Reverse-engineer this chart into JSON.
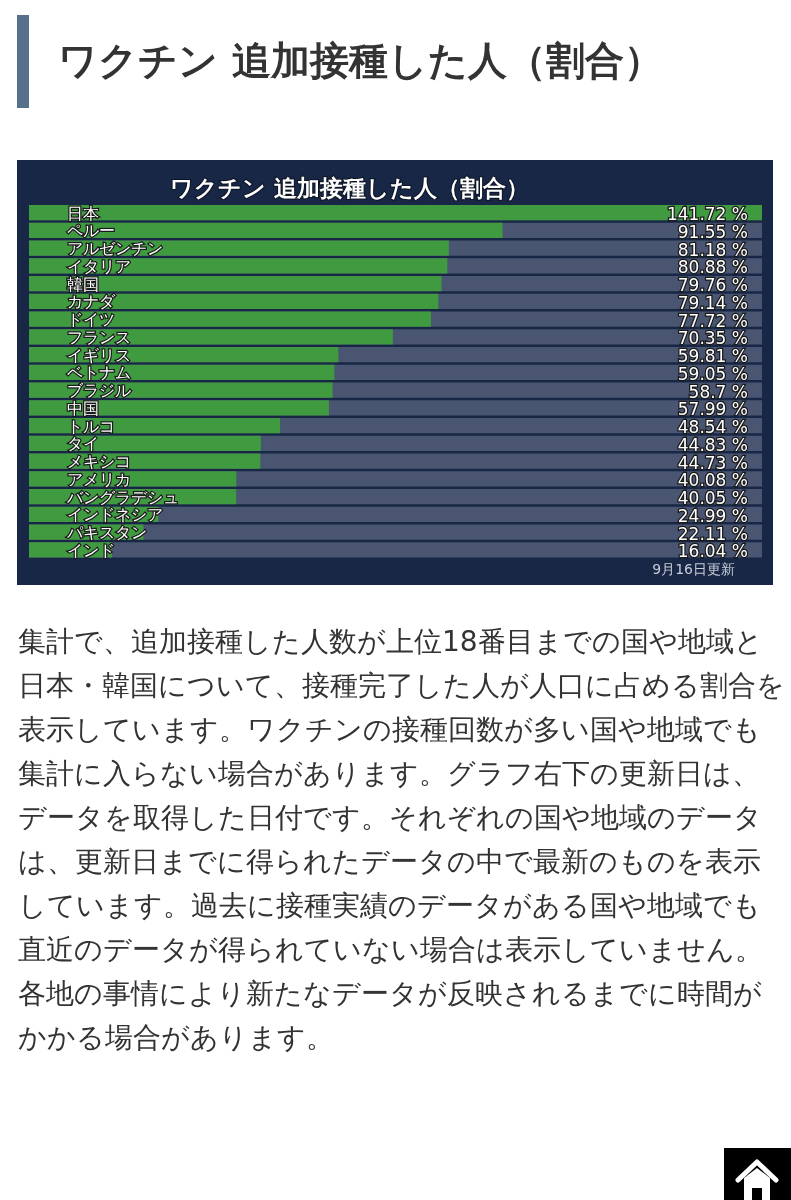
{
  "chart_data": {
    "type": "bar",
    "orientation": "horizontal",
    "title": "ワクチン 追加接種した人（割合）",
    "subtitle": "ワクチン 追加接種した人（割合）",
    "categories": [
      "日本",
      "ペルー",
      "アルゼンチン",
      "イタリア",
      "韓国",
      "カナダ",
      "ドイツ",
      "フランス",
      "イギリス",
      "ベトナム",
      "ブラジル",
      "中国",
      "トルコ",
      "タイ",
      "メキシコ",
      "アメリカ",
      "バングラデシュ",
      "インドネシア",
      "パキスタン",
      "インド"
    ],
    "values": [
      141.72,
      91.55,
      81.18,
      80.88,
      79.76,
      79.14,
      77.72,
      70.35,
      59.81,
      59.05,
      58.7,
      57.99,
      48.54,
      44.83,
      44.73,
      40.08,
      40.05,
      24.99,
      22.11,
      16.04
    ],
    "color": "#3f9a40",
    "value_labels": [
      "141.72 %",
      "91.55 %",
      "81.18 %",
      "80.88 %",
      "79.76 %",
      "79.14 %",
      "77.72 %",
      "70.35 %",
      "59.81 %",
      "59.05 %",
      "58.7 %",
      "57.99 %",
      "48.54 %",
      "44.83 %",
      "44.73 %",
      "40.08 %",
      "40.05 %",
      "24.99 %",
      "22.11 %",
      "16.04 %"
    ],
    "annotations": [
      "9月16日更新",
      "集計で、追加接種した人数が上位18番目までの国や地域と日本・韓国について、接種完了した人が人口に占める割合を表示しています。ワクチンの接種回数が多い国や地域でも集計に入らない場合があります。グラフ右下の更新日は、データを取得した日付です。それぞれの国や地域のデータは、更新日までに得られたデータの中で最新のものを表示しています。過去に接種実績のデータがある国や地域でも直近のデータが得られていない場合は表示していません。各地の事情により新たなデータが反映されるまでに時間がかかる場合があります。"
    ]
  }
}
